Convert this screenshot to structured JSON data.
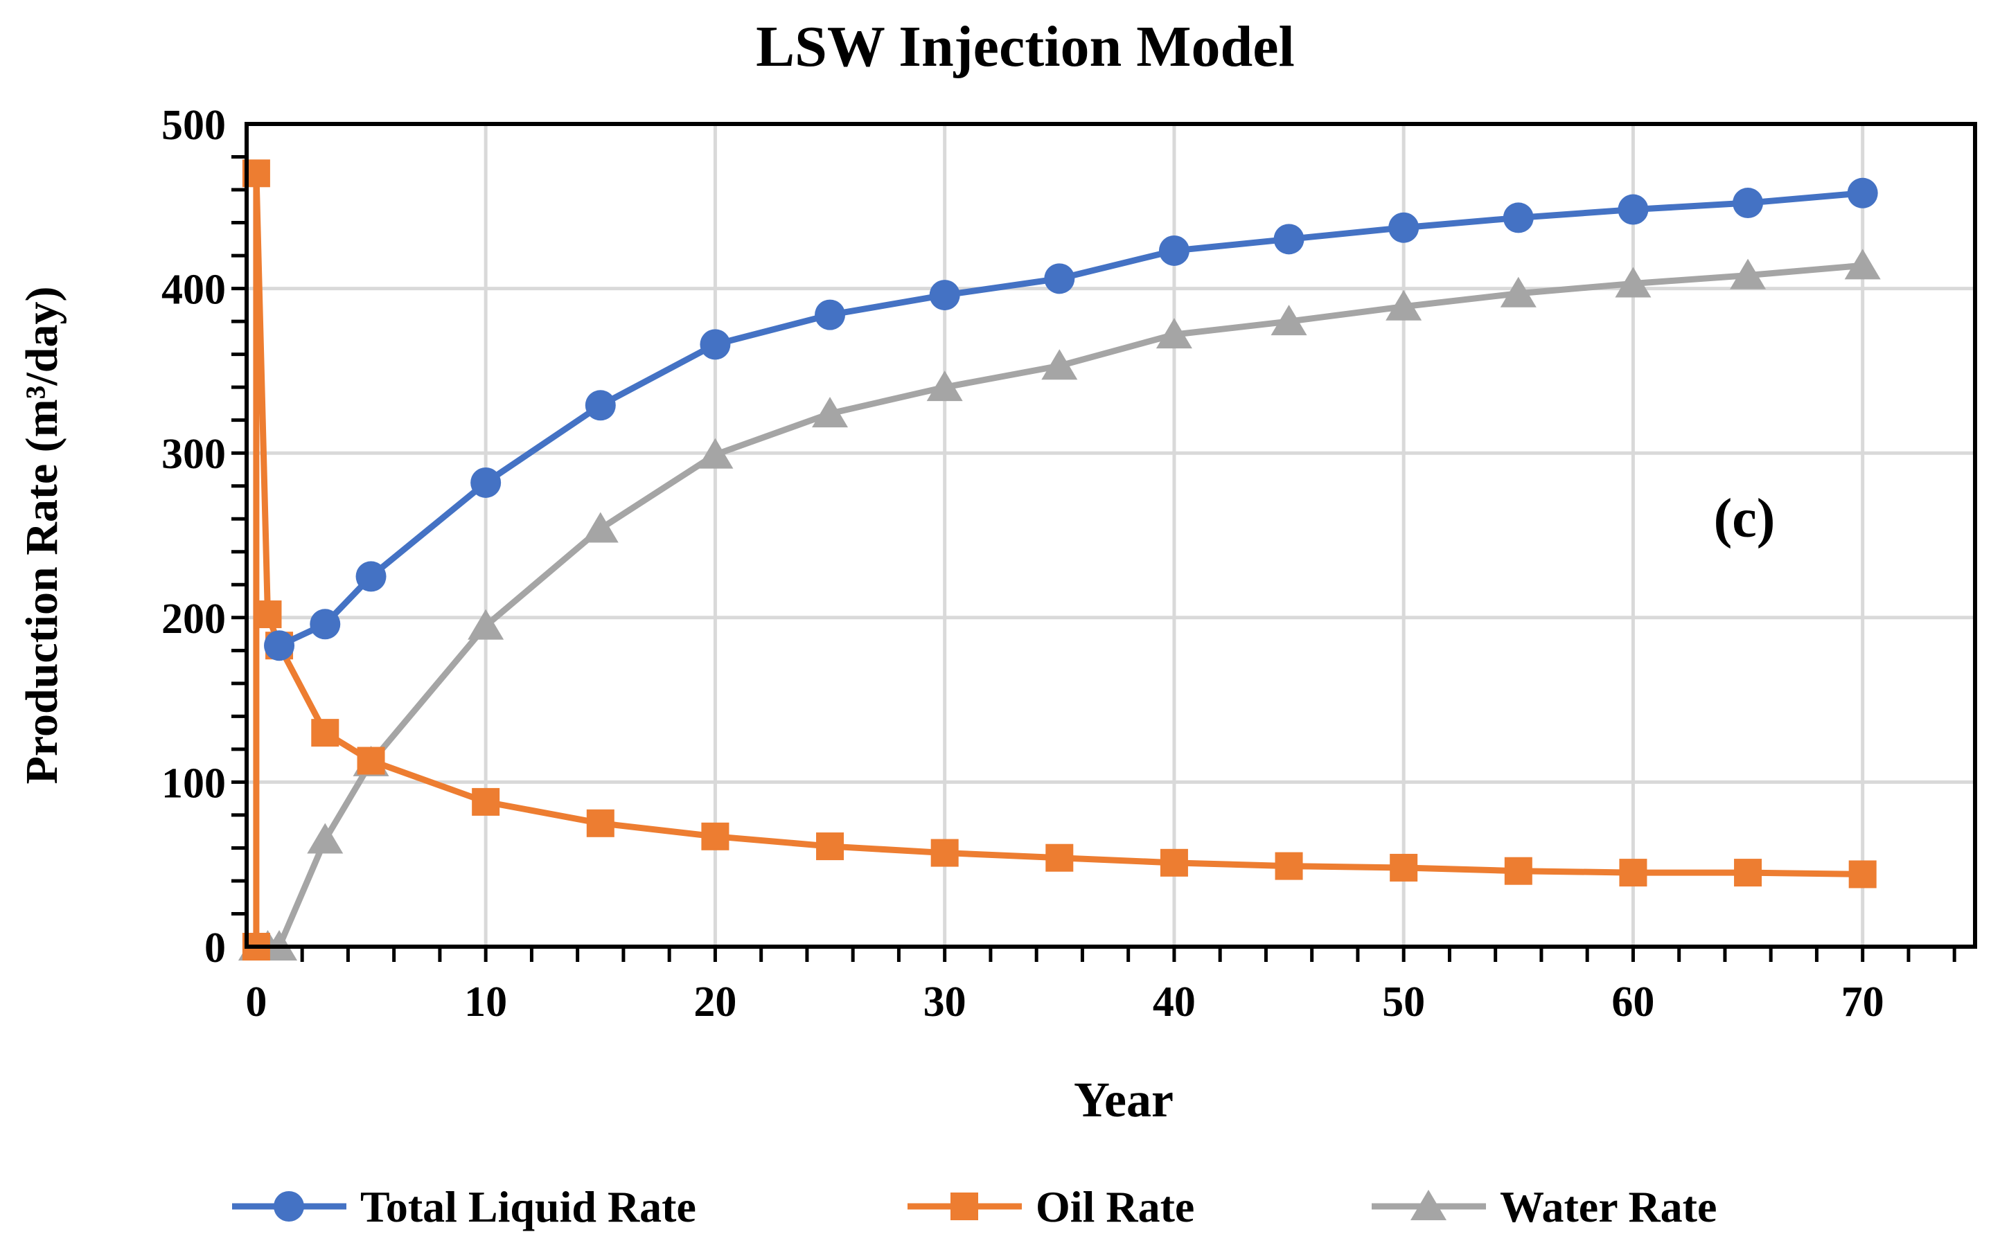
{
  "chart_data": {
    "type": "line",
    "title": "LSW Injection Model",
    "xlabel": "Year",
    "ylabel": "Production Rate (m³/day)",
    "annotation": "(c)",
    "xlim": [
      -0.42,
      74.9
    ],
    "ylim": [
      0,
      500
    ],
    "xticks": [
      0,
      10,
      20,
      30,
      40,
      50,
      60,
      70
    ],
    "yticks": [
      0,
      100,
      200,
      300,
      400,
      500
    ],
    "grid": true,
    "legend_position": "bottom",
    "series": [
      {
        "name": "Total Liquid Rate",
        "color": "#4472C4",
        "marker": "circle",
        "x": [
          1,
          3,
          5,
          10,
          15,
          20,
          25,
          30,
          35,
          40,
          45,
          50,
          55,
          60,
          65,
          70
        ],
        "y": [
          183,
          196,
          225,
          282,
          329,
          366,
          384,
          396,
          406,
          423,
          430,
          437,
          443,
          448,
          452,
          458
        ]
      },
      {
        "name": "Oil Rate",
        "color": "#ED7D31",
        "marker": "square",
        "x": [
          0,
          0,
          0.5,
          1,
          3,
          5,
          10,
          15,
          20,
          25,
          30,
          35,
          40,
          45,
          50,
          55,
          60,
          65,
          70
        ],
        "y": [
          0,
          470,
          202,
          183,
          130,
          113,
          88,
          75,
          67,
          61,
          57,
          54,
          51,
          49,
          48,
          46,
          45,
          45,
          44
        ]
      },
      {
        "name": "Water Rate",
        "color": "#A5A5A5",
        "marker": "triangle",
        "x": [
          0,
          0.5,
          1,
          3,
          5,
          10,
          15,
          20,
          25,
          30,
          35,
          40,
          45,
          50,
          55,
          60,
          65,
          70
        ],
        "y": [
          0,
          0,
          0,
          65,
          112,
          195,
          254,
          299,
          324,
          340,
          353,
          372,
          380,
          389,
          397,
          403,
          408,
          414
        ]
      }
    ]
  }
}
